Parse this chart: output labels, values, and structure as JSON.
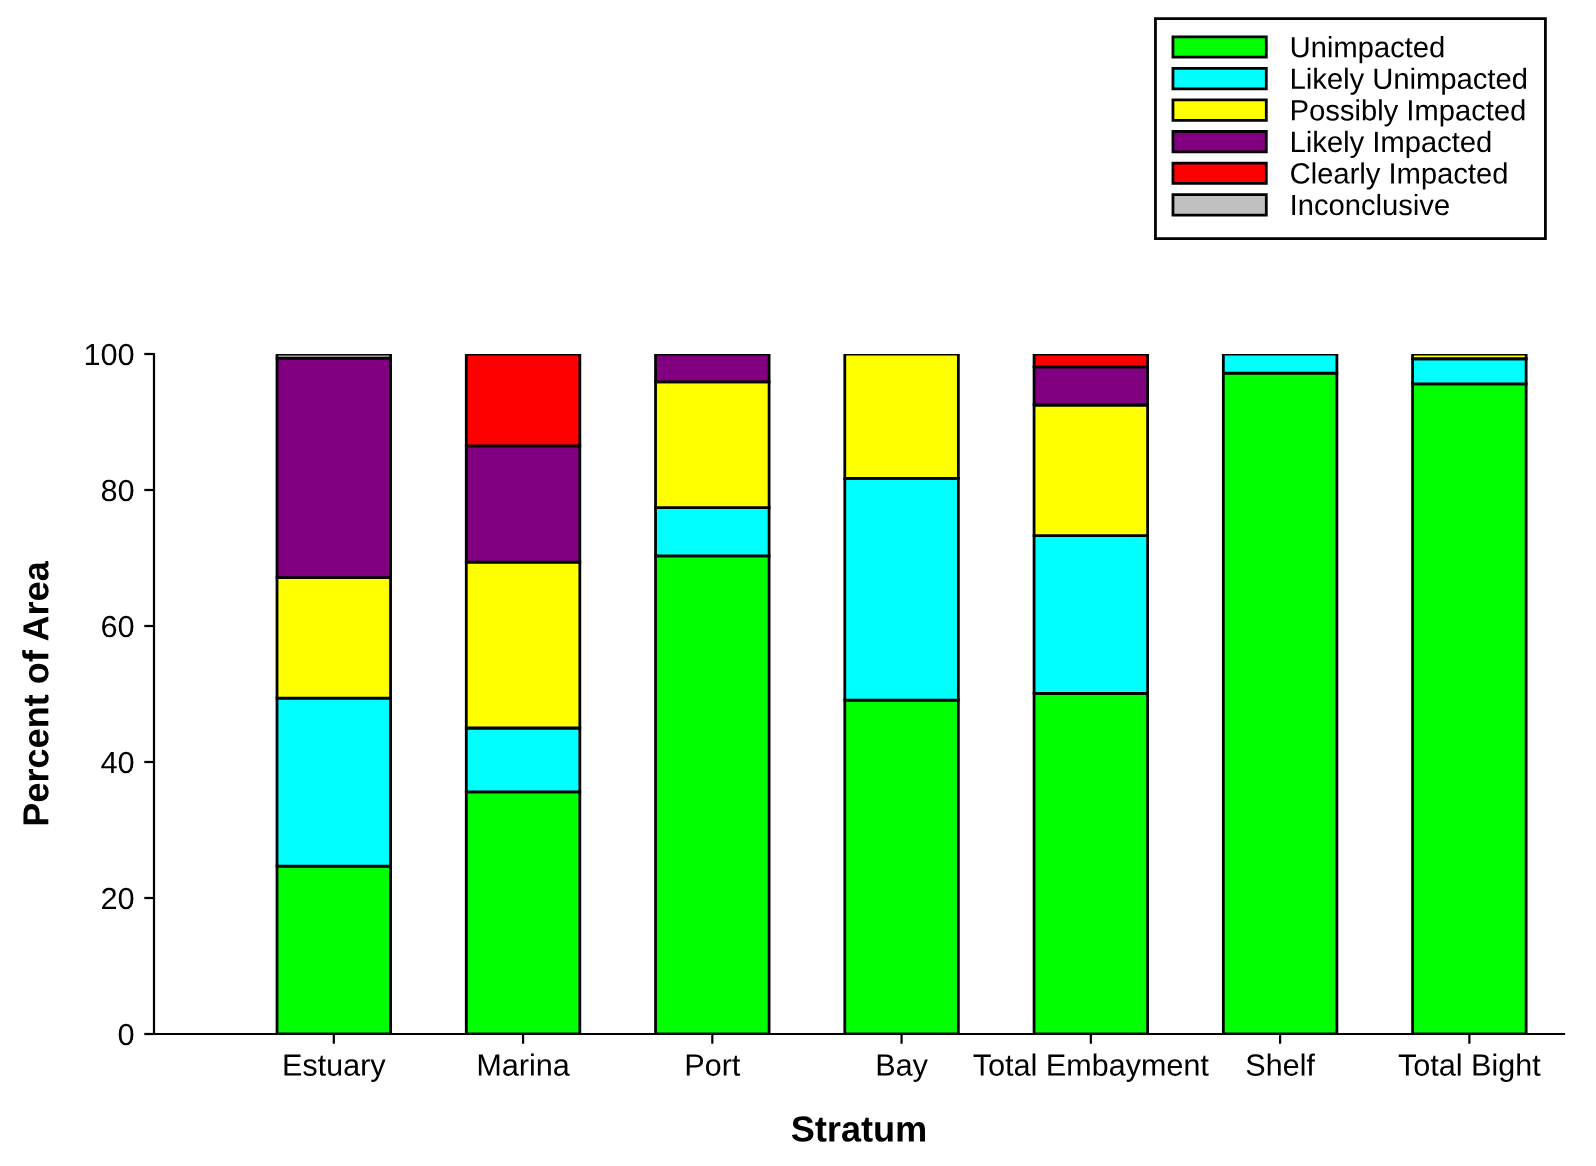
{
  "chart_data": {
    "type": "bar",
    "stacked": true,
    "xlabel": "Stratum",
    "ylabel": "Percent of Area",
    "categories": [
      "Estuary",
      "Marina",
      "Port",
      "Bay",
      "Total Embayment",
      "Shelf",
      "Total Bight"
    ],
    "series": [
      {
        "name": "Unimpacted",
        "color": "#00ff00",
        "values": [
          24.7,
          35.6,
          70.3,
          49.1,
          50.1,
          97.2,
          95.6
        ]
      },
      {
        "name": "Likely Unimpacted",
        "color": "#00ffff",
        "values": [
          24.7,
          9.4,
          7.1,
          32.6,
          23.2,
          2.8,
          3.7
        ]
      },
      {
        "name": "Possibly Impacted",
        "color": "#ffff00",
        "values": [
          17.7,
          24.4,
          18.5,
          18.3,
          19.2,
          0,
          0.7
        ]
      },
      {
        "name": "Likely Impacted",
        "color": "#800080",
        "values": [
          32.3,
          17.1,
          4.1,
          0,
          5.6,
          0,
          0
        ]
      },
      {
        "name": "Clearly Impacted",
        "color": "#ff0000",
        "values": [
          0,
          13.5,
          0,
          0,
          1.9,
          0,
          0
        ]
      },
      {
        "name": "Inconclusive",
        "color": "#c0c0c0",
        "values": [
          0.6,
          0,
          0,
          0,
          0,
          0,
          0
        ]
      }
    ],
    "ylim": [
      0,
      100
    ],
    "yticks": [
      0,
      20,
      40,
      60,
      80,
      100
    ],
    "grid": false,
    "legend": "top right"
  }
}
